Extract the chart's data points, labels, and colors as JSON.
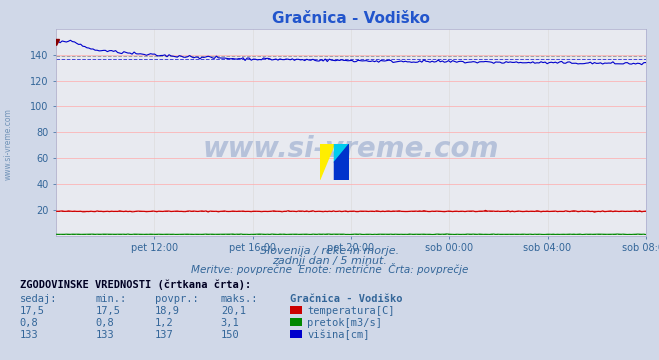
{
  "title": "Gračnica - Vodiško",
  "title_color": "#2255cc",
  "bg_color": "#d0d8e8",
  "plot_bg_color": "#e8eaf0",
  "grid_color_h": "#ffaaaa",
  "grid_color_v": "#dddddd",
  "xlabel_times": [
    "pet 12:00",
    "pet 16:00",
    "pet 20:00",
    "sob 00:00",
    "sob 04:00",
    "sob 08:00"
  ],
  "ylim": [
    0,
    160
  ],
  "yticks": [
    20,
    40,
    60,
    80,
    100,
    120,
    140
  ],
  "n_points": 288,
  "temp_color": "#cc0000",
  "pretok_color": "#008800",
  "visina_color": "#0000cc",
  "watermark": "www.si-vreme.com",
  "watermark_color": "#4466aa",
  "watermark_alpha": 0.3,
  "sub_text1": "Slovenija / reke in morje.",
  "sub_text2": "zadnji dan / 5 minut.",
  "sub_text3": "Meritve: povprečne  Enote: metrične  Črta: povprečje",
  "table_header": "ZGODOVINSKE VREDNOSTI (črtkana črta):",
  "col_headers": [
    "sedaj:",
    "min.:",
    "povpr.:",
    "maks.:",
    "Gračnica - Vodiško"
  ],
  "row1": [
    "17,5",
    "17,5",
    "18,9",
    "20,1",
    "temperatura[C]"
  ],
  "row2": [
    "0,8",
    "0,8",
    "1,2",
    "3,1",
    "pretok[m3/s]"
  ],
  "row3": [
    "133",
    "133",
    "137",
    "150",
    "višina[cm]"
  ],
  "side_label": "www.si-vreme.com",
  "text_color": "#336699",
  "logo_colors": [
    "#ffee00",
    "#00ccee",
    "#0033cc"
  ]
}
